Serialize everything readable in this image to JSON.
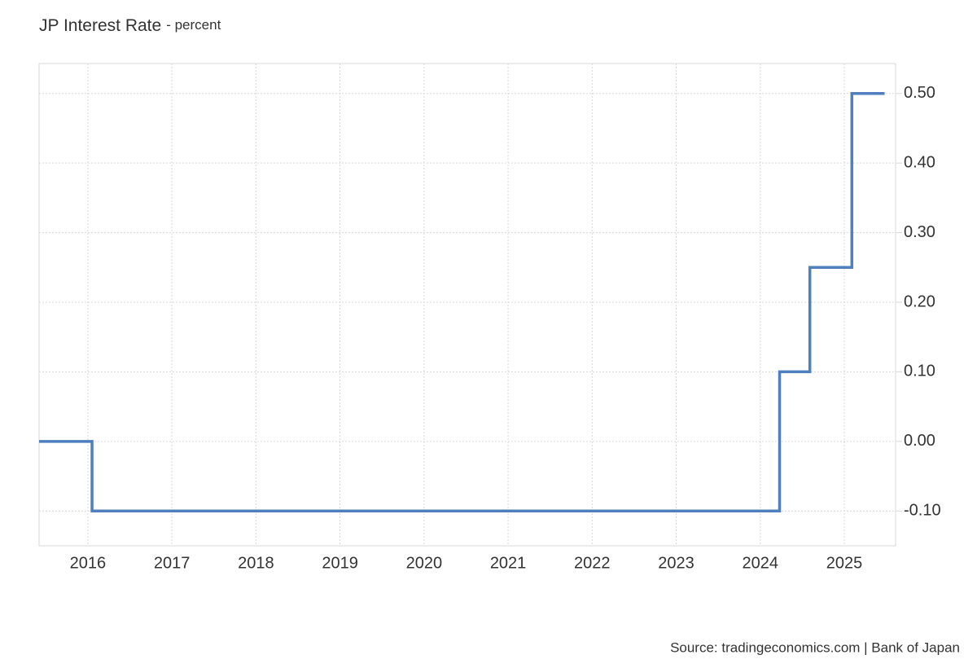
{
  "chart_data": {
    "type": "line",
    "step": true,
    "title": "JP Interest Rate",
    "subtitle": "- percent",
    "source": "Source: tradingeconomics.com | Bank of Japan",
    "x": [
      2015.42,
      2016.05,
      2024.23,
      2024.59,
      2025.09,
      2025.48
    ],
    "series": [
      {
        "name": "JP Interest Rate",
        "color": "#4f7fbc",
        "values": [
          0,
          -0.1,
          0.1,
          0.25,
          0.5,
          0.5
        ]
      }
    ],
    "xlim": [
      2015.42,
      2025.61
    ],
    "xticks": [
      2016,
      2017,
      2018,
      2019,
      2020,
      2021,
      2022,
      2023,
      2024,
      2025
    ],
    "ylim": [
      -0.15,
      0.543
    ],
    "yticks": [
      {
        "value": -0.1,
        "label": "-0.10"
      },
      {
        "value": 0,
        "label": "0.00"
      },
      {
        "value": 0.1,
        "label": "0.10"
      },
      {
        "value": 0.2,
        "label": "0.20"
      },
      {
        "value": 0.3,
        "label": "0.30"
      },
      {
        "value": 0.4,
        "label": "0.40"
      },
      {
        "value": 0.5,
        "label": "0.50"
      }
    ],
    "grid": true
  }
}
